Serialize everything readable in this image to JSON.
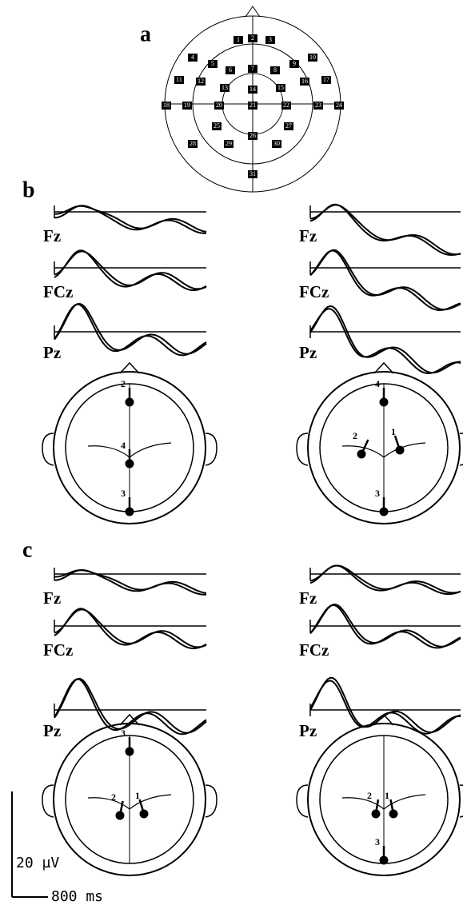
{
  "panels": [
    {
      "label": "a",
      "electrodes": [
        "1",
        "2",
        "3",
        "4",
        "5",
        "6",
        "7",
        "8",
        "9",
        "10",
        "11",
        "12",
        "13",
        "14",
        "15",
        "16",
        "17",
        "18",
        "19",
        "20",
        "21",
        "22",
        "23",
        "24",
        "25",
        "26",
        "27",
        "28",
        "29",
        "30",
        "31"
      ]
    },
    {
      "label": "b",
      "conditions": [
        {
          "channels": [
            "Fz",
            "FCz",
            "Pz"
          ],
          "dipoles": [
            "2",
            "4",
            "3"
          ]
        },
        {
          "channels": [
            "Fz",
            "FCz",
            "Pz"
          ],
          "dipoles": [
            "4",
            "2",
            "1",
            "3"
          ]
        }
      ]
    },
    {
      "label": "c",
      "conditions": [
        {
          "channels": [
            "Fz",
            "FCz",
            "Pz"
          ],
          "dipoles": [
            "3",
            "2",
            "1"
          ]
        },
        {
          "channels": [
            "Fz",
            "FCz",
            "Pz"
          ],
          "dipoles": [
            "2",
            "1",
            "3"
          ]
        }
      ]
    }
  ],
  "scale_bar": {
    "amplitude": "20 µV",
    "time": "800 ms"
  }
}
